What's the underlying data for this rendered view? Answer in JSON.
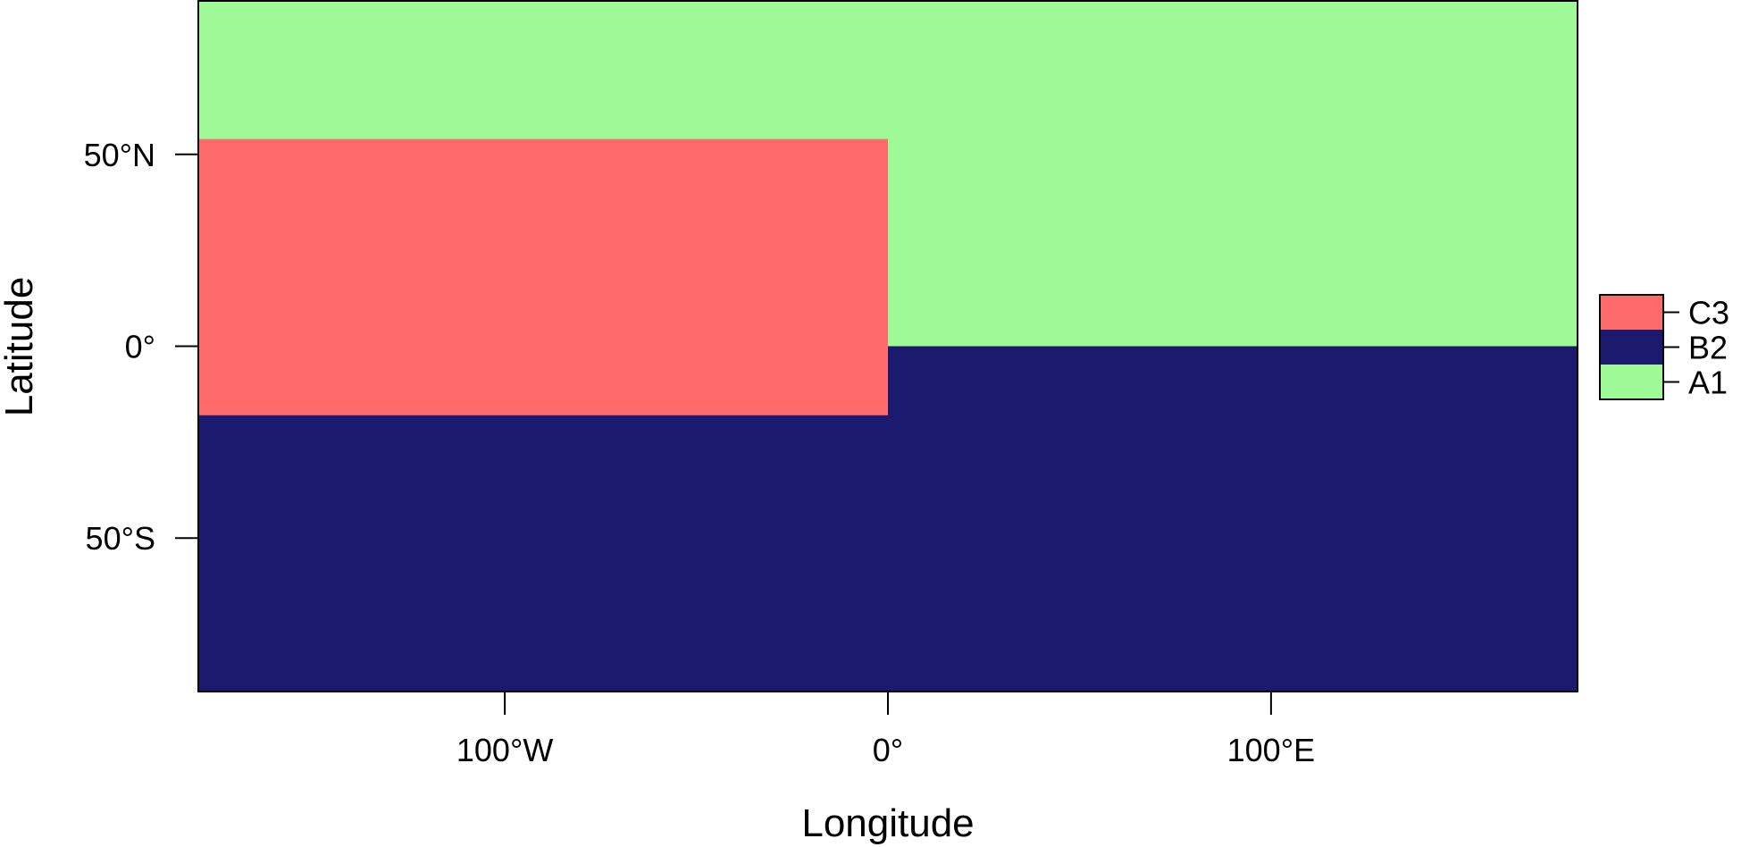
{
  "map": {
    "xlabel": "Longitude",
    "ylabel": "Latitude",
    "xlim": [
      -180,
      180
    ],
    "ylim": [
      -90,
      90
    ],
    "x_ticks": [
      {
        "value": -100,
        "label": "100°W"
      },
      {
        "value": 0,
        "label": "0°"
      },
      {
        "value": 100,
        "label": "100°E"
      }
    ],
    "y_ticks": [
      {
        "value": 50,
        "label": "50°N"
      },
      {
        "value": 0,
        "label": "0°"
      },
      {
        "value": -50,
        "label": "50°S"
      }
    ],
    "regions": [
      {
        "name": "A1",
        "color": "#9dfa97",
        "lon": [
          -180,
          180
        ],
        "lat": [
          0,
          90
        ]
      },
      {
        "name": "B2",
        "color": "#1b1a6e",
        "lon": [
          -180,
          180
        ],
        "lat": [
          -90,
          0
        ]
      },
      {
        "name": "C3",
        "color": "#ff6b6b",
        "lon": [
          -180,
          0
        ],
        "lat": [
          -18,
          54
        ]
      }
    ],
    "legend": {
      "position": "right",
      "items": [
        {
          "label": "C3",
          "color": "#ff6b6b"
        },
        {
          "label": "B2",
          "color": "#1b1a6e"
        },
        {
          "label": "A1",
          "color": "#9dfa97"
        }
      ]
    }
  }
}
